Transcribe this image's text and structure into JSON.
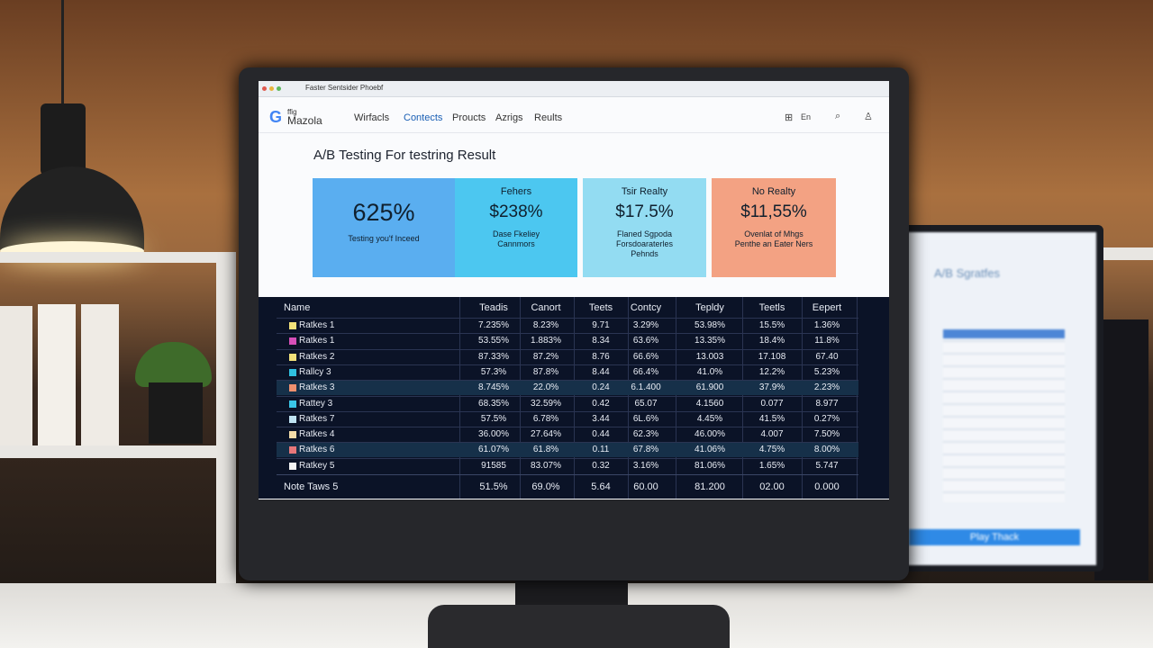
{
  "browser": {
    "tab_title": "Faster Sentsider Phoebf",
    "brand": "Mazola",
    "brand_prefix": "ffig",
    "nav": [
      "Wirfacls",
      "Contects",
      "Proucts",
      "Azrigs",
      "Reults"
    ],
    "lang": "En"
  },
  "page": {
    "title": "A/B Testing For testring Result",
    "cards": [
      {
        "value": "625%",
        "label": "Testing you'f Inceed"
      },
      {
        "heading": "Fehers",
        "value": "$238%",
        "label": "Dase Fkeliey Cannmors"
      },
      {
        "heading": "Tsir Realty",
        "value": "$17.5%",
        "label": "Flaned Sgpoda Forsdoaraterles Pehnds"
      },
      {
        "heading": "No Realty",
        "value": "$11,55%",
        "label": "Ovenlat of Mhgs Penthe an Eater Ners"
      }
    ]
  },
  "table": {
    "headers": [
      "Name",
      "Teadis",
      "Canort",
      "Teets",
      "Contcy",
      "Tepldy",
      "Teetls",
      "Eepert"
    ],
    "rows": [
      [
        "Ratkes 1",
        "7.235%",
        "8.23%",
        "9.71",
        "3.29%",
        "53.98%",
        "15.5%",
        "1.36%"
      ],
      [
        "Ratkes 1",
        "53.55%",
        "1.883%",
        "8.34",
        "63.6%",
        "13.35%",
        "18.4%",
        "11.8%"
      ],
      [
        "Ratkes 2",
        "87.33%",
        "87.2%",
        "8.76",
        "66.6%",
        "13.003",
        "17.108",
        "67.40"
      ],
      [
        "Rallcy 3",
        "57.3%",
        "87.8%",
        "8.44",
        "66.4%",
        "41.0%",
        "12.2%",
        "5.23%"
      ],
      [
        "Ratkes 3",
        "8.745%",
        "22.0%",
        "0.24",
        "6.1.400",
        "61.900",
        "37.9%",
        "2.23%"
      ],
      [
        "Rattey 3",
        "68.35%",
        "32.59%",
        "0.42",
        "65.07",
        "4.1560",
        "0.077",
        "8.977"
      ],
      [
        "Ratkes 7",
        "57.5%",
        "6.78%",
        "3.44",
        "6L.6%",
        "4.45%",
        "41.5%",
        "0.27%"
      ],
      [
        "Ratkes 4",
        "36.00%",
        "27.64%",
        "0.44",
        "62.3%",
        "46.00%",
        "4.007",
        "7.50%"
      ],
      [
        "Ratkes 6",
        "61.07%",
        "61.8%",
        "0.11",
        "67.8%",
        "41.06%",
        "4.75%",
        "8.00%"
      ],
      [
        "Ratkey 5",
        "91585",
        "83.07%",
        "0.32",
        "3.16%",
        "81.06%",
        "1.65%",
        "5.747"
      ]
    ],
    "footer": [
      "Note Taws 5",
      "51.5%",
      "69.0%",
      "5.64",
      "60.00",
      "81.200",
      "02.00",
      "0.000"
    ]
  },
  "background_monitor": {
    "title": "A/B Sgratfes",
    "button": "Play Thack"
  }
}
